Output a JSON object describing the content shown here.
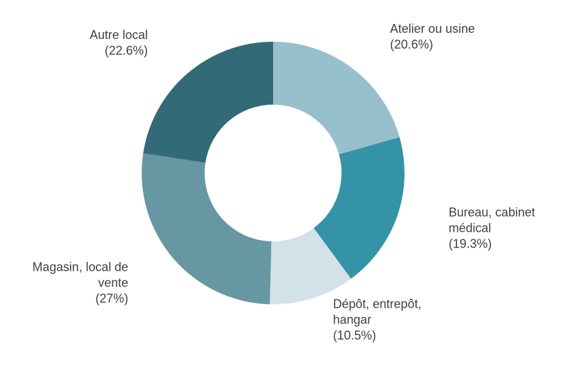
{
  "chart_data": {
    "type": "donut",
    "categories": [
      "Atelier ou usine",
      "Bureau, cabinet médical",
      "Dépôt, entrepôt, hangar",
      "Magasin, local de vente",
      "Autre local"
    ],
    "values": [
      20.6,
      19.3,
      10.5,
      27,
      22.6
    ],
    "value_labels": [
      "(20.6%)",
      "(19.3%)",
      "(10.5%)",
      "(27%)",
      "(22.6%)"
    ],
    "colors": [
      "#97bfcc",
      "#3493a6",
      "#d3e1e8",
      "#6797a2",
      "#336a77"
    ]
  }
}
